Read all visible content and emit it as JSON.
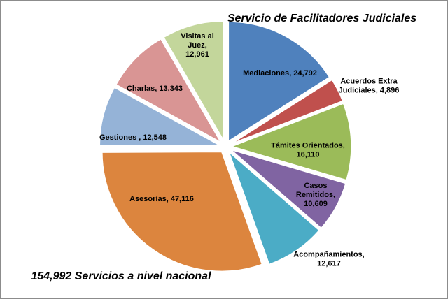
{
  "chart_data": {
    "type": "pie",
    "title": "Servicio de Facilitadores Judiciales",
    "subtitle": "154,992 Servicios a nivel nacional",
    "slices": [
      {
        "label_lines": [
          "Mediaciones,  24,792"
        ],
        "value": 24792,
        "color": "#4f81bd"
      },
      {
        "label_lines": [
          "Acuerdos Extra",
          "Judiciales,  4,896"
        ],
        "value": 4896,
        "color": "#c0504d"
      },
      {
        "label_lines": [
          "Támites Orientados,",
          "16,110"
        ],
        "value": 16110,
        "color": "#9bbb59"
      },
      {
        "label_lines": [
          "Casos",
          "Remitidos,",
          "10,609"
        ],
        "value": 10609,
        "color": "#8064a2"
      },
      {
        "label_lines": [
          "Acompañamientos,",
          "12,617"
        ],
        "value": 12617,
        "color": "#4bacc6"
      },
      {
        "label_lines": [
          "Asesorías,  47,116"
        ],
        "value": 47116,
        "color": "#dc853e"
      },
      {
        "label_lines": [
          "Gestiones ,  12,548"
        ],
        "value": 12548,
        "color": "#95b3d7"
      },
      {
        "label_lines": [
          "Charlas,  13,343"
        ],
        "value": 13343,
        "color": "#d99594"
      },
      {
        "label_lines": [
          "Visitas al",
          "Juez,",
          "12,961"
        ],
        "value": 12961,
        "color": "#c3d69b"
      }
    ]
  }
}
